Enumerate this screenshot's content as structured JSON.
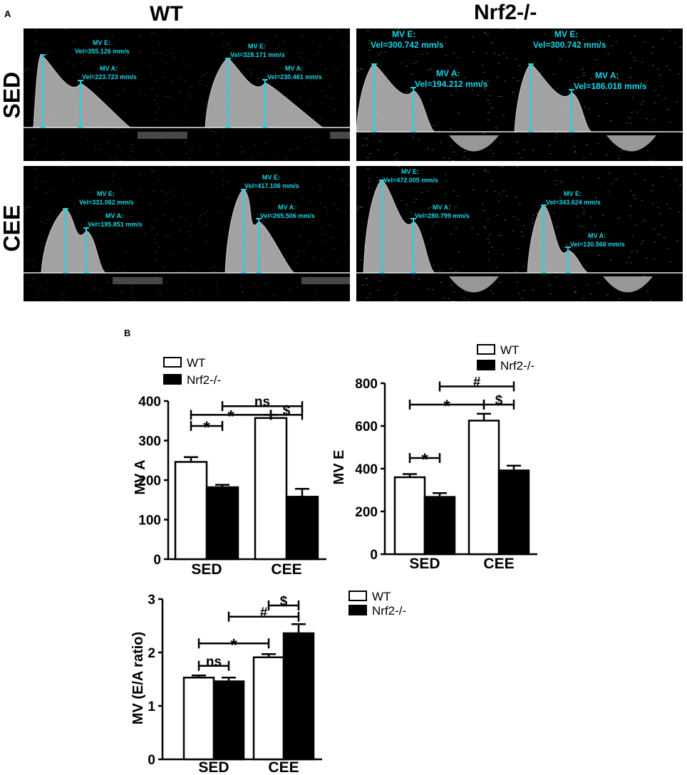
{
  "panels": {
    "a_label": "A",
    "b_label": "B"
  },
  "panel_a": {
    "col_titles": [
      "WT",
      "Nrf2-/-"
    ],
    "row_titles": [
      "SED",
      "CEE"
    ],
    "colors": {
      "measure": "#19d6e6",
      "baseline": "#e8e8e8",
      "background": "#000000"
    },
    "images": [
      {
        "id": "wt-sed",
        "label_pairs": [
          {
            "name": "MV E:",
            "value": "Vel=355.126 mm/s"
          },
          {
            "name": "MV A:",
            "value": "Vel=223.723 mm/s"
          },
          {
            "name": "MV E:",
            "value": "Vel=328.171 mm/s"
          },
          {
            "name": "MV A:",
            "value": "Vel=230.461 mm/s"
          }
        ]
      },
      {
        "id": "ko-sed",
        "label_pairs": [
          {
            "name": "MV E:",
            "value": "Vel=300.742 mm/s"
          },
          {
            "name": "MV A:",
            "value": "Vel=194.212 mm/s"
          },
          {
            "name": "MV E:",
            "value": "Vel=300.742 mm/s"
          },
          {
            "name": "MV A:",
            "value": "Vel=186.018 mm/s"
          }
        ]
      },
      {
        "id": "wt-cee",
        "label_pairs": [
          {
            "name": "MV E:",
            "value": "Vel=331.062 mm/s"
          },
          {
            "name": "MV A:",
            "value": "Vel=195.851 mm/s"
          },
          {
            "name": "MV E:",
            "value": "Vel=417.106 mm/s"
          },
          {
            "name": "MV A:",
            "value": "Vel=265.506 mm/s"
          }
        ]
      },
      {
        "id": "ko-cee",
        "label_pairs": [
          {
            "name": "MV E:",
            "value": "Vel=472.005 mm/s"
          },
          {
            "name": "MV A:",
            "value": "Vel=280.799 mm/s"
          },
          {
            "name": "MV E:",
            "value": "Vel=343.624 mm/s"
          },
          {
            "name": "MV A:",
            "value": "Vel=130.566 mm/s"
          }
        ]
      }
    ]
  },
  "chart_data": [
    {
      "type": "bar",
      "categories": [
        "SED",
        "CEE"
      ],
      "ylabel": "MV A",
      "ylim": [
        0,
        400
      ],
      "yticks": [
        0,
        100,
        200,
        300,
        400
      ],
      "legend": {
        "placement": "top-left",
        "entries": [
          "WT",
          "Nrf2-/-"
        ]
      },
      "series": [
        {
          "name": "WT",
          "color": "#ffffff",
          "values": [
            246,
            357
          ],
          "errors": [
            12,
            8
          ]
        },
        {
          "name": "Nrf2-/-",
          "color": "#000000",
          "values": [
            182,
            158
          ],
          "errors": [
            6,
            20
          ]
        }
      ],
      "annotations": [
        {
          "label": "*",
          "from": [
            0,
            0
          ],
          "to": [
            0,
            1
          ],
          "y": 337
        },
        {
          "label": "*",
          "from": [
            0,
            0
          ],
          "to": [
            1,
            0
          ],
          "y": 365
        },
        {
          "label": "$",
          "from": [
            1,
            0
          ],
          "to": [
            1,
            1
          ],
          "y": 365
        },
        {
          "label": "ns",
          "from": [
            0,
            1
          ],
          "to": [
            1,
            1
          ],
          "y": 387
        }
      ]
    },
    {
      "type": "bar",
      "categories": [
        "SED",
        "CEE"
      ],
      "ylabel": "MV E",
      "ylim": [
        0,
        800
      ],
      "yticks": [
        0,
        200,
        400,
        600,
        800
      ],
      "legend": {
        "placement": "top-right",
        "entries": [
          "WT",
          "Nrf2-/-"
        ]
      },
      "series": [
        {
          "name": "WT",
          "color": "#ffffff",
          "values": [
            360,
            625
          ],
          "errors": [
            15,
            32
          ]
        },
        {
          "name": "Nrf2-/-",
          "color": "#000000",
          "values": [
            268,
            392
          ],
          "errors": [
            18,
            22
          ]
        }
      ],
      "annotations": [
        {
          "label": "*",
          "from": [
            0,
            0
          ],
          "to": [
            0,
            1
          ],
          "y": 450
        },
        {
          "label": "*",
          "from": [
            0,
            0
          ],
          "to": [
            1,
            0
          ],
          "y": 700
        },
        {
          "label": "$",
          "from": [
            1,
            0
          ],
          "to": [
            1,
            1
          ],
          "y": 700
        },
        {
          "label": "#",
          "from": [
            0,
            1
          ],
          "to": [
            1,
            1
          ],
          "y": 785
        }
      ]
    },
    {
      "type": "bar",
      "categories": [
        "SED",
        "CEE"
      ],
      "ylabel": "MV (E/A ratio)",
      "ylim": [
        0,
        3
      ],
      "yticks": [
        0,
        1,
        2,
        3
      ],
      "legend": {
        "placement": "right",
        "entries": [
          "WT",
          "Nrf2-/-"
        ]
      },
      "series": [
        {
          "name": "WT",
          "color": "#ffffff",
          "values": [
            1.53,
            1.91
          ],
          "errors": [
            0.04,
            0.06
          ]
        },
        {
          "name": "Nrf2-/-",
          "color": "#000000",
          "values": [
            1.46,
            2.36
          ],
          "errors": [
            0.07,
            0.17
          ]
        }
      ],
      "annotations": [
        {
          "label": "ns",
          "from": [
            0,
            0
          ],
          "to": [
            0,
            1
          ],
          "y": 1.75
        },
        {
          "label": "*",
          "from": [
            0,
            0
          ],
          "to": [
            1,
            0
          ],
          "y": 2.17
        },
        {
          "label": "#",
          "from": [
            0,
            1
          ],
          "to": [
            1,
            1
          ],
          "y": 2.67
        },
        {
          "label": "$",
          "from": [
            1,
            0
          ],
          "to": [
            1,
            1
          ],
          "y": 2.88
        }
      ]
    }
  ]
}
